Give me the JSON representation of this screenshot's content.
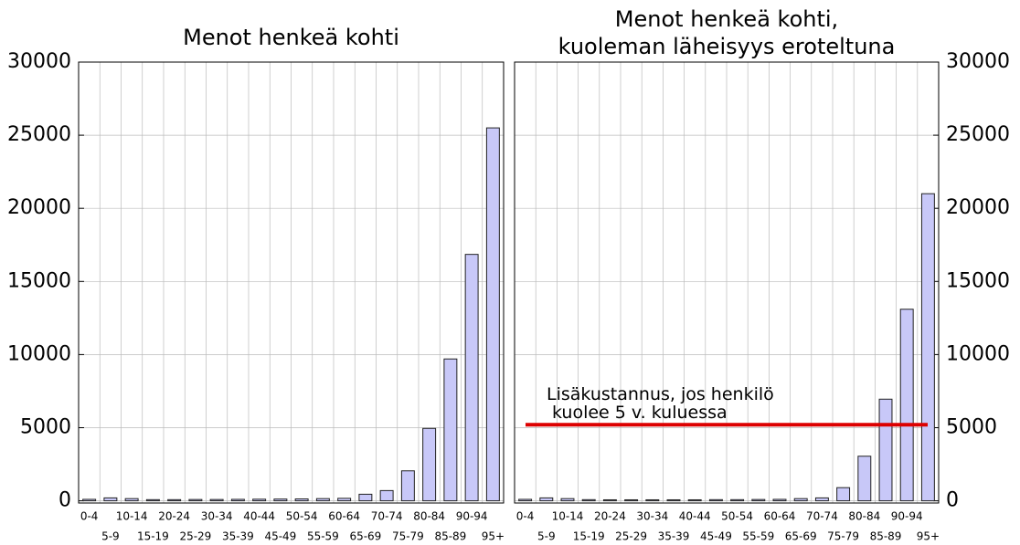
{
  "chart_data": [
    {
      "type": "bar",
      "title": "Menot henkeä kohti",
      "categories": [
        "0-4",
        "5-9",
        "10-14",
        "15-19",
        "20-24",
        "25-29",
        "30-34",
        "35-39",
        "40-44",
        "45-49",
        "50-54",
        "55-59",
        "60-64",
        "65-69",
        "70-74",
        "75-79",
        "80-84",
        "85-89",
        "90-94",
        "95+"
      ],
      "values": [
        100,
        200,
        150,
        80,
        80,
        90,
        90,
        100,
        110,
        120,
        130,
        150,
        170,
        450,
        700,
        2050,
        4950,
        9700,
        16850,
        25500
      ],
      "color": "#c8c8f8",
      "ylim": [
        -150,
        30000
      ],
      "yticks": [
        0,
        5000,
        10000,
        15000,
        20000,
        25000,
        30000
      ],
      "grid": true,
      "yaxis_side": "left"
    },
    {
      "type": "bar",
      "title": [
        "Menot henkeä kohti,",
        "kuoleman läheisyys eroteltuna"
      ],
      "categories": [
        "0-4",
        "5-9",
        "10-14",
        "15-19",
        "20-24",
        "25-29",
        "30-34",
        "35-39",
        "40-44",
        "45-49",
        "50-54",
        "55-59",
        "60-64",
        "65-69",
        "70-74",
        "75-79",
        "80-84",
        "85-89",
        "90-94",
        "95+"
      ],
      "values": [
        100,
        200,
        150,
        80,
        70,
        70,
        70,
        70,
        70,
        80,
        80,
        90,
        100,
        150,
        200,
        900,
        3050,
        6950,
        13100,
        21000
      ],
      "color": "#c8c8f8",
      "ylim": [
        -150,
        30000
      ],
      "yticks": [
        0,
        5000,
        10000,
        15000,
        20000,
        25000,
        30000
      ],
      "grid": true,
      "yaxis_side": "right",
      "reference_line": {
        "value": 5200,
        "color": "#dd0000",
        "label": [
          "Lisäkustannus, jos henkilö",
          "kuolee 5 v. kuluessa"
        ]
      }
    }
  ]
}
